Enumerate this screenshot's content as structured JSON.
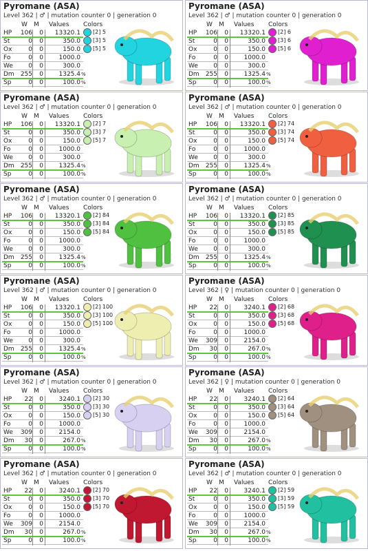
{
  "cards": [
    {
      "title": "Pyromane (ASA)",
      "level": "Level 362 | ♂ | mutation counter 0 | generation 0",
      "headers": [
        "W",
        "M",
        "Values",
        "Colors"
      ],
      "stats": [
        {
          "label": "HP",
          "w": "106",
          "m": "0",
          "value": "13320.1"
        },
        {
          "label": "St",
          "w": "0",
          "m": "0",
          "value": "350.0"
        },
        {
          "label": "Ox",
          "w": "0",
          "m": "0",
          "value": "150.0"
        },
        {
          "label": "Fo",
          "w": "0",
          "m": "0",
          "value": "1000.0"
        },
        {
          "label": "We",
          "w": "0",
          "m": "0",
          "value": "300.0"
        },
        {
          "label": "Dm",
          "w": "255",
          "m": "0",
          "value": "1325.4",
          "unit": "%"
        },
        {
          "label": "Sp",
          "w": "0",
          "m": "0",
          "value": "100.0",
          "unit": "%"
        }
      ],
      "colors": [
        {
          "label": "[2] 5",
          "color": "#22d3e0"
        },
        {
          "label": "[3] 5",
          "color": "#22d3e0"
        },
        {
          "label": "[5] 5",
          "color": "#22d3e0"
        }
      ]
    },
    {
      "title": "Pyromane (ASA)",
      "level": "Level 362 | ♂ | mutation counter 0 | generation 0",
      "headers": [
        "W",
        "M",
        "Values",
        "Colors"
      ],
      "stats": [
        {
          "label": "HP",
          "w": "106",
          "m": "0",
          "value": "13320.1"
        },
        {
          "label": "St",
          "w": "0",
          "m": "0",
          "value": "350.0"
        },
        {
          "label": "Ox",
          "w": "0",
          "m": "0",
          "value": "150.0"
        },
        {
          "label": "Fo",
          "w": "0",
          "m": "0",
          "value": "1000.0"
        },
        {
          "label": "We",
          "w": "0",
          "m": "0",
          "value": "300.0"
        },
        {
          "label": "Dm",
          "w": "255",
          "m": "0",
          "value": "1325.4",
          "unit": "%"
        },
        {
          "label": "Sp",
          "w": "0",
          "m": "0",
          "value": "100.0",
          "unit": "%"
        }
      ],
      "colors": [
        {
          "label": "[2] 6",
          "color": "#e020d0"
        },
        {
          "label": "[3] 6",
          "color": "#e020d0"
        },
        {
          "label": "[5] 6",
          "color": "#e020d0"
        }
      ]
    },
    {
      "title": "Pyromane (ASA)",
      "level": "Level 362 | ♂ | mutation counter 0 | generation 0",
      "headers": [
        "W",
        "M",
        "Values",
        "Colors"
      ],
      "stats": [
        {
          "label": "HP",
          "w": "106",
          "m": "0",
          "value": "13320.1"
        },
        {
          "label": "St",
          "w": "0",
          "m": "0",
          "value": "350.0"
        },
        {
          "label": "Ox",
          "w": "0",
          "m": "0",
          "value": "150.0"
        },
        {
          "label": "Fo",
          "w": "0",
          "m": "0",
          "value": "1000.0"
        },
        {
          "label": "We",
          "w": "0",
          "m": "0",
          "value": "300.0"
        },
        {
          "label": "Dm",
          "w": "255",
          "m": "0",
          "value": "1325.4",
          "unit": "%"
        },
        {
          "label": "Sp",
          "w": "0",
          "m": "0",
          "value": "100.0",
          "unit": "%"
        }
      ],
      "colors": [
        {
          "label": "[2] 7",
          "color": "#c8f0b0"
        },
        {
          "label": "[3] 7",
          "color": "#c8f0b0"
        },
        {
          "label": "[5] 7",
          "color": "#c8f0b0"
        }
      ]
    },
    {
      "title": "Pyromane (ASA)",
      "level": "Level 362 | ♂ | mutation counter 0 | generation 0",
      "headers": [
        "W",
        "M",
        "Values",
        "Colors"
      ],
      "stats": [
        {
          "label": "HP",
          "w": "106",
          "m": "0",
          "value": "13320.1"
        },
        {
          "label": "St",
          "w": "0",
          "m": "0",
          "value": "350.0"
        },
        {
          "label": "Ox",
          "w": "0",
          "m": "0",
          "value": "150.0"
        },
        {
          "label": "Fo",
          "w": "0",
          "m": "0",
          "value": "1000.0"
        },
        {
          "label": "We",
          "w": "0",
          "m": "0",
          "value": "300.0"
        },
        {
          "label": "Dm",
          "w": "255",
          "m": "0",
          "value": "1325.4",
          "unit": "%"
        },
        {
          "label": "Sp",
          "w": "0",
          "m": "0",
          "value": "100.0",
          "unit": "%"
        }
      ],
      "colors": [
        {
          "label": "[2] 74",
          "color": "#f06040"
        },
        {
          "label": "[3] 74",
          "color": "#f06040"
        },
        {
          "label": "[5] 74",
          "color": "#f06040"
        }
      ]
    },
    {
      "title": "Pyromane (ASA)",
      "level": "Level 362 | ♂ | mutation counter 0 | generation 0",
      "headers": [
        "W",
        "M",
        "Values",
        "Colors"
      ],
      "stats": [
        {
          "label": "HP",
          "w": "106",
          "m": "0",
          "value": "13320.1"
        },
        {
          "label": "St",
          "w": "0",
          "m": "0",
          "value": "350.0"
        },
        {
          "label": "Ox",
          "w": "0",
          "m": "0",
          "value": "150.0"
        },
        {
          "label": "Fo",
          "w": "0",
          "m": "0",
          "value": "1000.0"
        },
        {
          "label": "We",
          "w": "0",
          "m": "0",
          "value": "300.0"
        },
        {
          "label": "Dm",
          "w": "255",
          "m": "0",
          "value": "1325.4",
          "unit": "%"
        },
        {
          "label": "Sp",
          "w": "0",
          "m": "0",
          "value": "100.0",
          "unit": "%"
        }
      ],
      "colors": [
        {
          "label": "[2] 84",
          "color": "#50c040"
        },
        {
          "label": "[3] 84",
          "color": "#50c040"
        },
        {
          "label": "[5] 84",
          "color": "#50c040"
        }
      ]
    },
    {
      "title": "Pyromane (ASA)",
      "level": "Level 362 | ♂ | mutation counter 0 | generation 0",
      "headers": [
        "W",
        "M",
        "Values",
        "Colors"
      ],
      "stats": [
        {
          "label": "HP",
          "w": "106",
          "m": "0",
          "value": "13320.1"
        },
        {
          "label": "St",
          "w": "0",
          "m": "0",
          "value": "350.0"
        },
        {
          "label": "Ox",
          "w": "0",
          "m": "0",
          "value": "150.0"
        },
        {
          "label": "Fo",
          "w": "0",
          "m": "0",
          "value": "1000.0"
        },
        {
          "label": "We",
          "w": "0",
          "m": "0",
          "value": "300.0"
        },
        {
          "label": "Dm",
          "w": "255",
          "m": "0",
          "value": "1325.4",
          "unit": "%"
        },
        {
          "label": "Sp",
          "w": "0",
          "m": "0",
          "value": "100.0",
          "unit": "%"
        }
      ],
      "colors": [
        {
          "label": "[2] 85",
          "color": "#209050"
        },
        {
          "label": "[3] 85",
          "color": "#209050"
        },
        {
          "label": "[5] 85",
          "color": "#209050"
        }
      ]
    },
    {
      "title": "Pyromane (ASA)",
      "level": "Level 362 | ♂ | mutation counter 0 | generation 0",
      "headers": [
        "W",
        "M",
        "Values",
        "Colors"
      ],
      "stats": [
        {
          "label": "HP",
          "w": "106",
          "m": "0",
          "value": "13320.1"
        },
        {
          "label": "St",
          "w": "0",
          "m": "0",
          "value": "350.0"
        },
        {
          "label": "Ox",
          "w": "0",
          "m": "0",
          "value": "150.0"
        },
        {
          "label": "Fo",
          "w": "0",
          "m": "0",
          "value": "1000.0"
        },
        {
          "label": "We",
          "w": "0",
          "m": "0",
          "value": "300.0"
        },
        {
          "label": "Dm",
          "w": "255",
          "m": "0",
          "value": "1325.4",
          "unit": "%"
        },
        {
          "label": "Sp",
          "w": "0",
          "m": "0",
          "value": "100.0",
          "unit": "%"
        }
      ],
      "colors": [
        {
          "label": "[2] 100",
          "color": "#eeeeb0"
        },
        {
          "label": "[3] 100",
          "color": "#eeeeb0"
        },
        {
          "label": "[5] 100",
          "color": "#eeeeb0"
        }
      ]
    },
    {
      "title": "Pyromane (ASA)",
      "level": "Level 362 | ♀ | mutation counter 0 | generation 0",
      "headers": [
        "W",
        "M",
        "Values",
        "Colors"
      ],
      "stats": [
        {
          "label": "HP",
          "w": "22",
          "m": "0",
          "value": "3240.1"
        },
        {
          "label": "St",
          "w": "0",
          "m": "0",
          "value": "350.0"
        },
        {
          "label": "Ox",
          "w": "0",
          "m": "0",
          "value": "150.0"
        },
        {
          "label": "Fo",
          "w": "0",
          "m": "0",
          "value": "1000.0"
        },
        {
          "label": "We",
          "w": "309",
          "m": "0",
          "value": "2154.0"
        },
        {
          "label": "Dm",
          "w": "30",
          "m": "0",
          "value": "267.0",
          "unit": "%"
        },
        {
          "label": "Sp",
          "w": "0",
          "m": "0",
          "value": "100.0",
          "unit": "%"
        }
      ],
      "colors": [
        {
          "label": "[2] 68",
          "color": "#e0208a"
        },
        {
          "label": "[3] 68",
          "color": "#e0208a"
        },
        {
          "label": "[5] 68",
          "color": "#e0208a"
        }
      ]
    },
    {
      "title": "Pyromane (ASA)",
      "level": "Level 362 | ♂ | mutation counter 0 | generation 0",
      "headers": [
        "W",
        "M",
        "Values",
        "Colors"
      ],
      "stats": [
        {
          "label": "HP",
          "w": "22",
          "m": "0",
          "value": "3240.1"
        },
        {
          "label": "St",
          "w": "0",
          "m": "0",
          "value": "350.0"
        },
        {
          "label": "Ox",
          "w": "0",
          "m": "0",
          "value": "150.0"
        },
        {
          "label": "Fo",
          "w": "0",
          "m": "0",
          "value": "1000.0"
        },
        {
          "label": "We",
          "w": "309",
          "m": "0",
          "value": "2154.0"
        },
        {
          "label": "Dm",
          "w": "30",
          "m": "0",
          "value": "267.0",
          "unit": "%"
        },
        {
          "label": "Sp",
          "w": "0",
          "m": "0",
          "value": "100.0",
          "unit": "%"
        }
      ],
      "colors": [
        {
          "label": "[2] 30",
          "color": "#d8d0f0"
        },
        {
          "label": "[3] 30",
          "color": "#d8d0f0"
        },
        {
          "label": "[5] 30",
          "color": "#d8d0f0"
        }
      ]
    },
    {
      "title": "Pyromane (ASA)",
      "level": "Level 362 | ♀ | mutation counter 0 | generation 0",
      "headers": [
        "W",
        "M",
        "Values",
        "Colors"
      ],
      "stats": [
        {
          "label": "HP",
          "w": "22",
          "m": "0",
          "value": "3240.1"
        },
        {
          "label": "St",
          "w": "0",
          "m": "0",
          "value": "350.0"
        },
        {
          "label": "Ox",
          "w": "0",
          "m": "0",
          "value": "150.0"
        },
        {
          "label": "Fo",
          "w": "0",
          "m": "0",
          "value": "1000.0"
        },
        {
          "label": "We",
          "w": "309",
          "m": "0",
          "value": "2154.0"
        },
        {
          "label": "Dm",
          "w": "30",
          "m": "0",
          "value": "267.0",
          "unit": "%"
        },
        {
          "label": "Sp",
          "w": "0",
          "m": "0",
          "value": "100.0",
          "unit": "%"
        }
      ],
      "colors": [
        {
          "label": "[2] 64",
          "color": "#a09080"
        },
        {
          "label": "[3] 64",
          "color": "#a09080"
        },
        {
          "label": "[5] 64",
          "color": "#a09080"
        }
      ]
    },
    {
      "title": "Pyromane (ASA)",
      "level": "Level 362 | ♂ | mutation counter 0 | generation 0",
      "headers": [
        "W",
        "M",
        "Values",
        "Colors"
      ],
      "stats": [
        {
          "label": "HP",
          "w": "22",
          "m": "0",
          "value": "3240.1"
        },
        {
          "label": "St",
          "w": "0",
          "m": "0",
          "value": "350.0"
        },
        {
          "label": "Ox",
          "w": "0",
          "m": "0",
          "value": "150.0"
        },
        {
          "label": "Fo",
          "w": "0",
          "m": "0",
          "value": "1000.0"
        },
        {
          "label": "We",
          "w": "309",
          "m": "0",
          "value": "2154.0"
        },
        {
          "label": "Dm",
          "w": "30",
          "m": "0",
          "value": "267.0",
          "unit": "%"
        },
        {
          "label": "Sp",
          "w": "0",
          "m": "0",
          "value": "100.0",
          "unit": "%"
        }
      ],
      "colors": [
        {
          "label": "[2] 70",
          "color": "#c01830"
        },
        {
          "label": "[3] 70",
          "color": "#c01830"
        },
        {
          "label": "[5] 70",
          "color": "#c01830"
        }
      ]
    },
    {
      "title": "Pyromane (ASA)",
      "level": "Level 362 | ♂ | mutation counter 0 | generation 0",
      "headers": [
        "W",
        "M",
        "Values",
        "Colors"
      ],
      "stats": [
        {
          "label": "HP",
          "w": "22",
          "m": "0",
          "value": "3240.1"
        },
        {
          "label": "St",
          "w": "0",
          "m": "0",
          "value": "350.0"
        },
        {
          "label": "Ox",
          "w": "0",
          "m": "0",
          "value": "150.0"
        },
        {
          "label": "Fo",
          "w": "0",
          "m": "0",
          "value": "1000.0"
        },
        {
          "label": "We",
          "w": "309",
          "m": "0",
          "value": "2154.0"
        },
        {
          "label": "Dm",
          "w": "30",
          "m": "0",
          "value": "267.0",
          "unit": "%"
        },
        {
          "label": "Sp",
          "w": "0",
          "m": "0",
          "value": "100.0",
          "unit": "%"
        }
      ],
      "colors": [
        {
          "label": "[2] 59",
          "color": "#20c0a0"
        },
        {
          "label": "[3] 59",
          "color": "#20c0a0"
        },
        {
          "label": "[5] 59",
          "color": "#20c0a0"
        }
      ]
    }
  ]
}
